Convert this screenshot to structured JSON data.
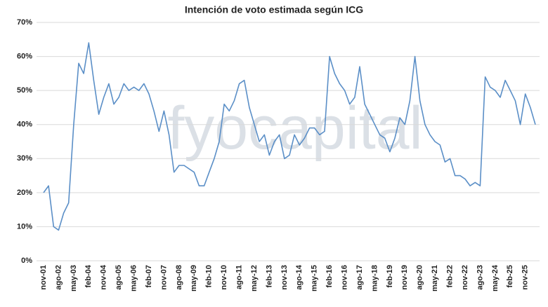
{
  "chart_data": {
    "type": "line",
    "title": "Intención de voto estimada según ICG",
    "watermark": "fyocapital",
    "categories": [
      "nov-01",
      null,
      null,
      "ago-02",
      null,
      null,
      "may-03",
      null,
      null,
      "feb-04",
      null,
      null,
      "nov-04",
      null,
      null,
      "ago-05",
      null,
      null,
      "may-06",
      null,
      null,
      "feb-07",
      null,
      null,
      "nov-07",
      null,
      null,
      "ago-08",
      null,
      null,
      "may-09",
      null,
      null,
      "feb-10",
      null,
      null,
      "nov-10",
      null,
      null,
      "ago-11",
      null,
      null,
      "may-12",
      null,
      null,
      "feb-13",
      null,
      null,
      "nov-13",
      null,
      null,
      "ago-14",
      null,
      null,
      "may-15",
      null,
      null,
      "feb-16",
      null,
      null,
      "nov-16",
      null,
      null,
      "ago-17",
      null,
      null,
      "may-18",
      null,
      null,
      "feb-19",
      null,
      null,
      "nov-19",
      null,
      null,
      "ago-20",
      null,
      null,
      "may-21",
      null,
      null,
      "feb-22",
      null,
      null,
      "nov-22",
      null,
      null,
      "ago-23",
      null,
      null,
      "may-24",
      null,
      null,
      "feb-25",
      null,
      null,
      "nov-25",
      null,
      null
    ],
    "series": [
      {
        "name": "ICG",
        "color": "#5b8fc7",
        "values": [
          20,
          22,
          10,
          9,
          14,
          17,
          40,
          58,
          55,
          64,
          53,
          43,
          48,
          52,
          46,
          48,
          52,
          50,
          51,
          50,
          52,
          49,
          44,
          38,
          44,
          37,
          26,
          28,
          28,
          27,
          26,
          22,
          22,
          26,
          30,
          35,
          46,
          44,
          47,
          52,
          53,
          45,
          40,
          35,
          37,
          31,
          35,
          37,
          30,
          31,
          37,
          34,
          36,
          39,
          39,
          37,
          38,
          60,
          55,
          52,
          50,
          46,
          48,
          57,
          46,
          43,
          40,
          37,
          36,
          32,
          36,
          42,
          40,
          47,
          60,
          47,
          40,
          37,
          35,
          34,
          29,
          30,
          25,
          25,
          24,
          22,
          23,
          22,
          54,
          51,
          50,
          48,
          53,
          50,
          47,
          40,
          49,
          45,
          40
        ]
      }
    ],
    "ylim": [
      0,
      70
    ],
    "yticks": [
      {
        "value": 0,
        "label": "0%"
      },
      {
        "value": 10,
        "label": "10%"
      },
      {
        "value": 20,
        "label": "20%"
      },
      {
        "value": 30,
        "label": "30%"
      },
      {
        "value": 40,
        "label": "40%"
      },
      {
        "value": 50,
        "label": "50%"
      },
      {
        "value": 60,
        "label": "60%"
      },
      {
        "value": 70,
        "label": "70%"
      }
    ],
    "grid": true
  }
}
